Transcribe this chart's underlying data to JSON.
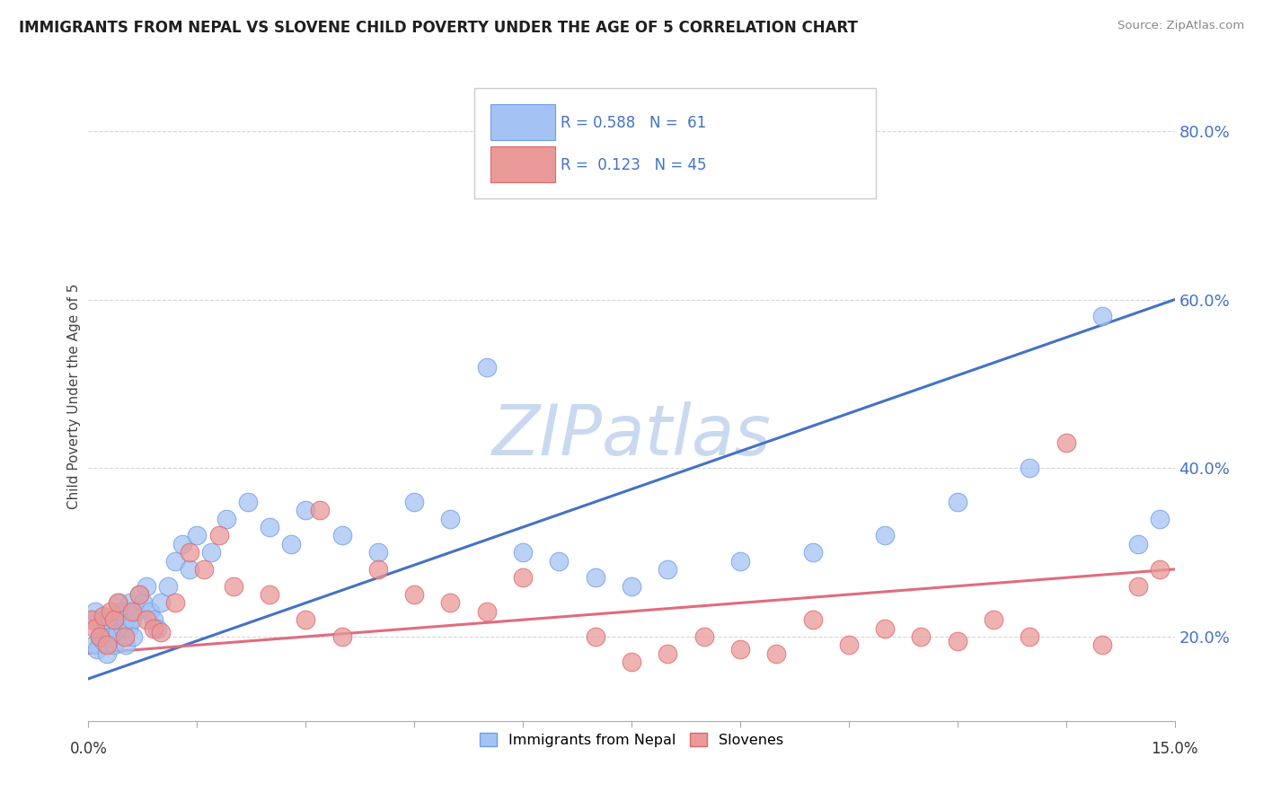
{
  "title": "IMMIGRANTS FROM NEPAL VS SLOVENE CHILD POVERTY UNDER THE AGE OF 5 CORRELATION CHART",
  "source": "Source: ZipAtlas.com",
  "ylabel": "Child Poverty Under the Age of 5",
  "yticks": [
    20.0,
    40.0,
    60.0,
    80.0
  ],
  "xlim": [
    0.0,
    15.0
  ],
  "ylim": [
    10.0,
    87.0
  ],
  "legend1_label": "Immigrants from Nepal",
  "legend2_label": "Slovenes",
  "R1": 0.588,
  "N1": 61,
  "R2": 0.123,
  "N2": 45,
  "blue_fill": "#a4c2f4",
  "blue_edge": "#6d9eeb",
  "pink_fill": "#ea9999",
  "pink_edge": "#e06666",
  "blue_line": "#4472c4",
  "pink_line": "#e06c7e",
  "watermark": "ZIPatlas",
  "watermark_color": "#c9d9f0",
  "title_color": "#1f1f1f",
  "ytick_color": "#4472c4",
  "nepal_x": [
    0.05,
    0.08,
    0.1,
    0.12,
    0.15,
    0.18,
    0.2,
    0.22,
    0.25,
    0.28,
    0.3,
    0.32,
    0.35,
    0.38,
    0.4,
    0.42,
    0.45,
    0.48,
    0.5,
    0.52,
    0.55,
    0.58,
    0.6,
    0.62,
    0.65,
    0.7,
    0.75,
    0.8,
    0.85,
    0.9,
    0.95,
    1.0,
    1.1,
    1.2,
    1.3,
    1.4,
    1.5,
    1.7,
    1.9,
    2.2,
    2.5,
    2.8,
    3.0,
    3.5,
    4.0,
    4.5,
    5.0,
    5.5,
    6.0,
    6.5,
    7.0,
    7.5,
    8.0,
    9.0,
    10.0,
    11.0,
    12.0,
    13.0,
    14.0,
    14.5,
    14.8
  ],
  "nepal_y": [
    22.0,
    19.0,
    23.0,
    18.5,
    20.0,
    21.0,
    19.5,
    22.0,
    18.0,
    20.0,
    21.5,
    20.0,
    19.0,
    22.0,
    20.5,
    24.0,
    23.0,
    21.0,
    22.0,
    19.0,
    21.0,
    24.0,
    22.0,
    20.0,
    23.0,
    25.0,
    24.0,
    26.0,
    23.0,
    22.0,
    21.0,
    24.0,
    26.0,
    29.0,
    31.0,
    28.0,
    32.0,
    30.0,
    34.0,
    36.0,
    33.0,
    31.0,
    35.0,
    32.0,
    30.0,
    36.0,
    34.0,
    52.0,
    30.0,
    29.0,
    27.0,
    26.0,
    28.0,
    29.0,
    30.0,
    32.0,
    36.0,
    40.0,
    58.0,
    31.0,
    34.0
  ],
  "slovene_x": [
    0.05,
    0.1,
    0.15,
    0.2,
    0.25,
    0.3,
    0.35,
    0.4,
    0.5,
    0.6,
    0.7,
    0.8,
    0.9,
    1.0,
    1.2,
    1.4,
    1.6,
    1.8,
    2.0,
    2.5,
    3.0,
    3.2,
    3.5,
    4.0,
    4.5,
    5.0,
    5.5,
    6.0,
    7.0,
    7.5,
    8.0,
    8.5,
    9.0,
    9.5,
    10.0,
    10.5,
    11.0,
    11.5,
    12.0,
    12.5,
    13.0,
    13.5,
    14.0,
    14.5,
    14.8
  ],
  "slovene_y": [
    22.0,
    21.0,
    20.0,
    22.5,
    19.0,
    23.0,
    22.0,
    24.0,
    20.0,
    23.0,
    25.0,
    22.0,
    21.0,
    20.5,
    24.0,
    30.0,
    28.0,
    32.0,
    26.0,
    25.0,
    22.0,
    35.0,
    20.0,
    28.0,
    25.0,
    24.0,
    23.0,
    27.0,
    20.0,
    17.0,
    18.0,
    20.0,
    18.5,
    18.0,
    22.0,
    19.0,
    21.0,
    20.0,
    19.5,
    22.0,
    20.0,
    43.0,
    19.0,
    26.0,
    28.0
  ]
}
